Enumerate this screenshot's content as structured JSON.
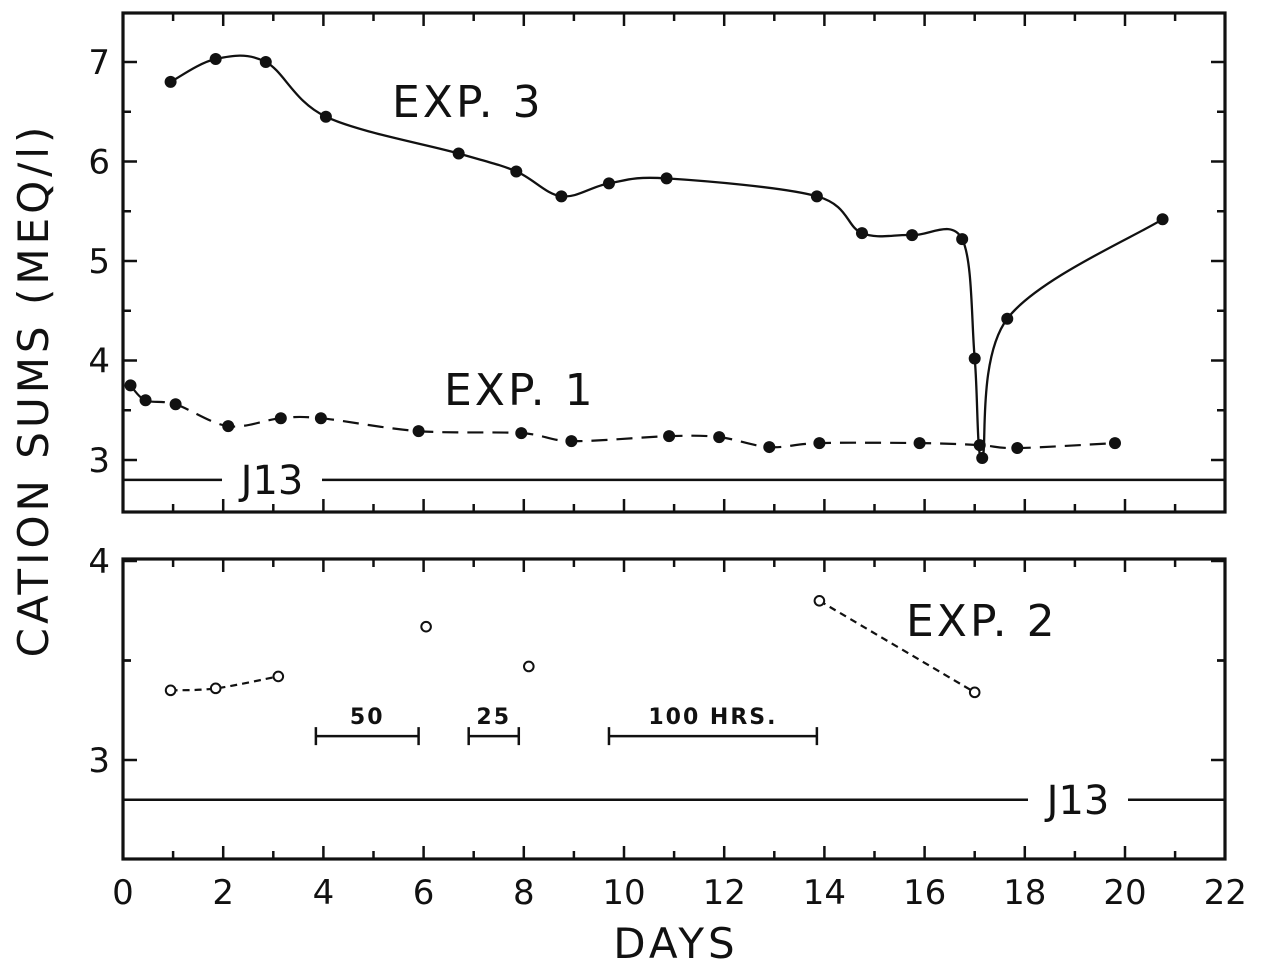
{
  "chart_data": [
    {
      "type": "line",
      "panel": "top",
      "xlabel": "DAYS",
      "ylabel": "CATION SUMS (MEQ/l)",
      "xlim": [
        0,
        22
      ],
      "ylim": [
        2.5,
        7.5
      ],
      "x_ticks": [
        "0",
        "2",
        "4",
        "6",
        "8",
        "10",
        "12",
        "14",
        "16",
        "18",
        "20",
        "22"
      ],
      "y_ticks": [
        {
          "v": 3,
          "label": "3"
        },
        {
          "v": 4,
          "label": "4"
        },
        {
          "v": 5,
          "label": "5"
        },
        {
          "v": 6,
          "label": "6"
        },
        {
          "v": 7,
          "label": "7"
        }
      ],
      "series": [
        {
          "name": "EXP. 3",
          "style": "solid",
          "marker": "filled",
          "points": [
            [
              0.95,
              6.8
            ],
            [
              1.85,
              7.03
            ],
            [
              2.85,
              7.0
            ],
            [
              4.05,
              6.45
            ],
            [
              6.7,
              6.08
            ],
            [
              7.85,
              5.9
            ],
            [
              8.75,
              5.65
            ],
            [
              9.7,
              5.78
            ],
            [
              10.85,
              5.83
            ],
            [
              13.85,
              5.65
            ],
            [
              14.75,
              5.28
            ],
            [
              15.75,
              5.26
            ],
            [
              16.75,
              5.22
            ],
            [
              17.0,
              4.02
            ],
            [
              17.15,
              3.02
            ],
            [
              17.65,
              4.42
            ],
            [
              20.75,
              5.42
            ]
          ]
        },
        {
          "name": "EXP. 1",
          "style": "dashed",
          "marker": "filled",
          "points": [
            [
              0.15,
              3.75
            ],
            [
              0.45,
              3.6
            ],
            [
              1.05,
              3.56
            ],
            [
              2.1,
              3.34
            ],
            [
              3.15,
              3.42
            ],
            [
              3.95,
              3.42
            ],
            [
              5.9,
              3.29
            ],
            [
              7.95,
              3.27
            ],
            [
              8.95,
              3.19
            ],
            [
              10.9,
              3.24
            ],
            [
              11.9,
              3.23
            ],
            [
              12.9,
              3.13
            ],
            [
              13.9,
              3.17
            ],
            [
              15.9,
              3.17
            ],
            [
              17.1,
              3.15
            ],
            [
              17.85,
              3.12
            ],
            [
              19.8,
              3.17
            ]
          ]
        }
      ],
      "reference": {
        "name": "J13",
        "y": 2.8
      }
    },
    {
      "type": "line",
      "panel": "bottom",
      "xlabel": "DAYS",
      "ylabel": "CATION SUMS (MEQ/l)",
      "xlim": [
        0,
        22
      ],
      "ylim": [
        2.5,
        4.0
      ],
      "y_ticks": [
        {
          "v": 3,
          "label": "3"
        },
        {
          "v": 4,
          "label": "4"
        }
      ],
      "series": [
        {
          "name": "EXP. 2",
          "style": "dotted",
          "marker": "open",
          "points": [
            [
              0.95,
              3.35
            ],
            [
              1.85,
              3.36
            ],
            [
              3.1,
              3.42
            ]
          ]
        },
        {
          "name": "EXP. 2",
          "style": "none",
          "marker": "open",
          "points": [
            [
              6.05,
              3.67
            ],
            [
              8.1,
              3.47
            ]
          ]
        },
        {
          "name": "EXP. 2",
          "style": "dotted",
          "marker": "open",
          "points": [
            [
              13.9,
              3.8
            ],
            [
              17.0,
              3.34
            ]
          ]
        }
      ],
      "time_bars": [
        {
          "label": "50",
          "x0": 3.85,
          "x1": 5.9,
          "y": 3.12
        },
        {
          "label": "25",
          "x0": 6.9,
          "x1": 7.9,
          "y": 3.12
        },
        {
          "label": "100 HRS.",
          "x0": 9.7,
          "x1": 13.85,
          "y": 3.12
        }
      ],
      "reference": {
        "name": "J13",
        "y": 2.8
      }
    }
  ],
  "labels": {
    "exp3": "EXP. 3",
    "exp1": "EXP. 1",
    "exp2": "EXP. 2",
    "j13_top": "J13",
    "j13_bottom": "J13",
    "xlabel": "DAYS",
    "ylabel": "CATION SUMS (MEQ/l)"
  }
}
